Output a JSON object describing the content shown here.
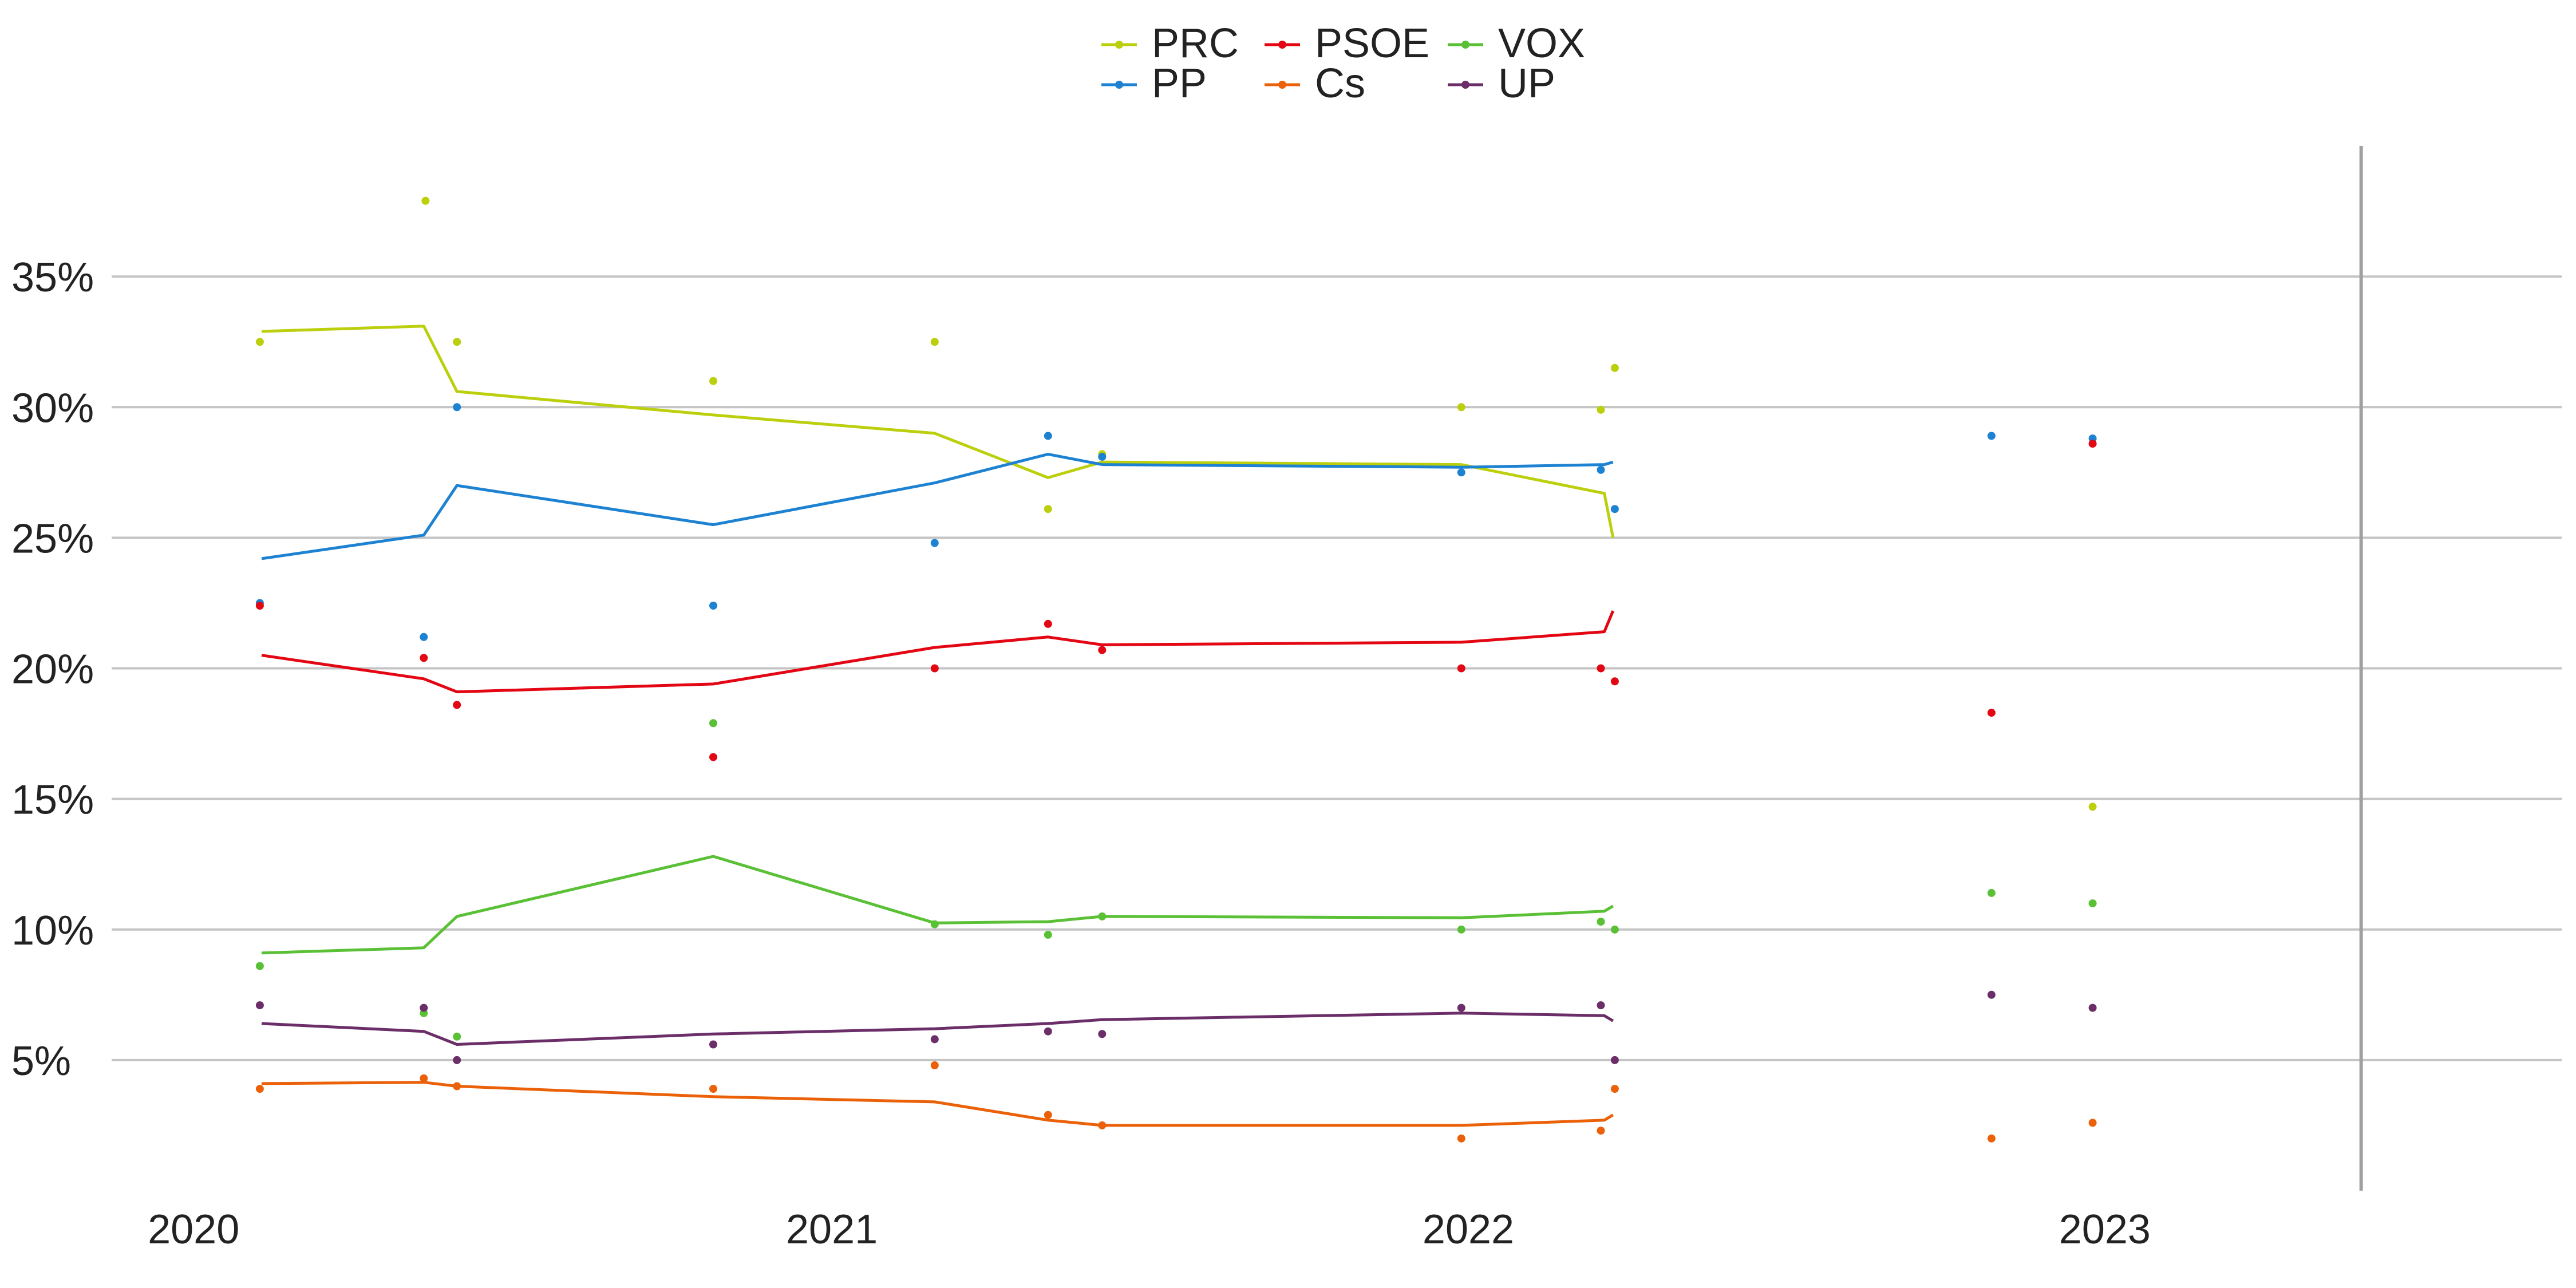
{
  "chart_data": {
    "type": "line",
    "title": "",
    "xlabel": "",
    "ylabel": "",
    "x_ticks": [
      "2020",
      "2021",
      "2022",
      "2023"
    ],
    "y_ticks": [
      "5%",
      "10%",
      "15%",
      "20%",
      "25%",
      "30%",
      "35%"
    ],
    "x_range": [
      "2019-11-15",
      "2023-09-20"
    ],
    "y_range": [
      0,
      40
    ],
    "grid": "horizontal",
    "legend_position": "top",
    "vertical_marker": "2023-05-28",
    "series": [
      {
        "name": "PRC",
        "color": "#bccf0d",
        "line": [
          [
            "2020-02-09",
            32.9
          ],
          [
            "2020-05-12",
            33.1
          ],
          [
            "2020-05-31",
            30.6
          ],
          [
            "2020-10-25",
            29.7
          ],
          [
            "2021-03-01",
            29.0
          ],
          [
            "2021-05-05",
            27.3
          ],
          [
            "2021-06-05",
            27.9
          ],
          [
            "2021-12-28",
            27.8
          ],
          [
            "2022-03-20",
            26.7
          ],
          [
            "2022-03-25",
            25.0
          ]
        ],
        "points": [
          [
            "2020-02-08",
            32.5
          ],
          [
            "2020-05-13",
            37.9
          ],
          [
            "2020-05-31",
            32.5
          ],
          [
            "2020-10-25",
            31.0
          ],
          [
            "2021-03-01",
            32.5
          ],
          [
            "2021-05-05",
            26.1
          ],
          [
            "2021-06-05",
            28.2
          ],
          [
            "2021-12-28",
            30.0
          ],
          [
            "2022-03-18",
            29.9
          ],
          [
            "2022-03-26",
            31.5
          ],
          [
            "2022-12-25",
            14.7
          ]
        ]
      },
      {
        "name": "PP",
        "color": "#1e82d2",
        "line": [
          [
            "2020-02-09",
            24.2
          ],
          [
            "2020-05-12",
            25.1
          ],
          [
            "2020-05-31",
            27.0
          ],
          [
            "2020-10-25",
            25.5
          ],
          [
            "2021-03-01",
            27.1
          ],
          [
            "2021-05-05",
            28.2
          ],
          [
            "2021-06-05",
            27.8
          ],
          [
            "2021-12-28",
            27.7
          ],
          [
            "2022-03-20",
            27.8
          ],
          [
            "2022-03-25",
            27.9
          ]
        ],
        "points": [
          [
            "2020-02-08",
            22.5
          ],
          [
            "2020-05-12",
            21.2
          ],
          [
            "2020-05-31",
            30.0
          ],
          [
            "2020-10-25",
            22.4
          ],
          [
            "2021-03-01",
            24.8
          ],
          [
            "2021-05-05",
            28.9
          ],
          [
            "2021-06-05",
            28.1
          ],
          [
            "2021-12-28",
            27.5
          ],
          [
            "2022-03-18",
            27.6
          ],
          [
            "2022-03-26",
            26.1
          ],
          [
            "2022-10-28",
            28.9
          ],
          [
            "2022-12-25",
            28.8
          ]
        ]
      },
      {
        "name": "PSOE",
        "color": "#e30613",
        "line": [
          [
            "2020-02-09",
            20.5
          ],
          [
            "2020-05-12",
            19.6
          ],
          [
            "2020-05-31",
            19.1
          ],
          [
            "2020-10-25",
            19.4
          ],
          [
            "2021-03-01",
            20.8
          ],
          [
            "2021-05-05",
            21.2
          ],
          [
            "2021-06-05",
            20.9
          ],
          [
            "2021-12-28",
            21.0
          ],
          [
            "2022-03-20",
            21.4
          ],
          [
            "2022-03-25",
            22.2
          ]
        ],
        "points": [
          [
            "2020-02-08",
            22.4
          ],
          [
            "2020-05-12",
            20.4
          ],
          [
            "2020-05-31",
            18.6
          ],
          [
            "2020-10-25",
            16.6
          ],
          [
            "2021-03-01",
            20.0
          ],
          [
            "2021-05-05",
            21.7
          ],
          [
            "2021-06-05",
            20.7
          ],
          [
            "2021-12-28",
            20.0
          ],
          [
            "2022-03-18",
            20.0
          ],
          [
            "2022-03-26",
            19.5
          ],
          [
            "2022-10-28",
            18.3
          ],
          [
            "2022-12-25",
            28.6
          ]
        ]
      },
      {
        "name": "Cs",
        "color": "#eb6109",
        "line": [
          [
            "2020-02-09",
            4.1
          ],
          [
            "2020-05-12",
            4.15
          ],
          [
            "2020-05-31",
            4.0
          ],
          [
            "2020-10-25",
            3.6
          ],
          [
            "2021-03-01",
            3.4
          ],
          [
            "2021-05-05",
            2.7
          ],
          [
            "2021-06-05",
            2.5
          ],
          [
            "2021-12-28",
            2.5
          ],
          [
            "2022-03-20",
            2.7
          ],
          [
            "2022-03-25",
            2.9
          ]
        ],
        "points": [
          [
            "2020-02-08",
            3.9
          ],
          [
            "2020-05-12",
            4.3
          ],
          [
            "2020-05-31",
            4.0
          ],
          [
            "2020-10-25",
            3.9
          ],
          [
            "2021-03-01",
            4.8
          ],
          [
            "2021-05-05",
            2.9
          ],
          [
            "2021-06-05",
            2.5
          ],
          [
            "2021-12-28",
            2.0
          ],
          [
            "2022-03-18",
            2.3
          ],
          [
            "2022-03-26",
            3.9
          ],
          [
            "2022-10-28",
            2.0
          ],
          [
            "2022-12-25",
            2.6
          ]
        ]
      },
      {
        "name": "VOX",
        "color": "#5ac035",
        "line": [
          [
            "2020-02-09",
            9.1
          ],
          [
            "2020-05-12",
            9.3
          ],
          [
            "2020-05-31",
            10.5
          ],
          [
            "2020-10-25",
            12.8
          ],
          [
            "2021-03-01",
            10.25
          ],
          [
            "2021-05-05",
            10.3
          ],
          [
            "2021-06-05",
            10.5
          ],
          [
            "2021-12-28",
            10.45
          ],
          [
            "2022-03-20",
            10.7
          ],
          [
            "2022-03-25",
            10.9
          ]
        ],
        "points": [
          [
            "2020-02-08",
            8.6
          ],
          [
            "2020-05-12",
            6.8
          ],
          [
            "2020-05-31",
            5.9
          ],
          [
            "2020-10-25",
            17.9
          ],
          [
            "2021-03-01",
            10.2
          ],
          [
            "2021-05-05",
            9.8
          ],
          [
            "2021-06-05",
            10.5
          ],
          [
            "2021-12-28",
            10.0
          ],
          [
            "2022-03-18",
            10.3
          ],
          [
            "2022-03-26",
            10.0
          ],
          [
            "2022-10-28",
            11.4
          ],
          [
            "2022-12-25",
            11.0
          ]
        ]
      },
      {
        "name": "UP",
        "color": "#6b2e68",
        "line": [
          [
            "2020-02-09",
            6.4
          ],
          [
            "2020-05-12",
            6.1
          ],
          [
            "2020-05-31",
            5.6
          ],
          [
            "2020-10-25",
            6.0
          ],
          [
            "2021-03-01",
            6.2
          ],
          [
            "2021-05-05",
            6.4
          ],
          [
            "2021-06-05",
            6.55
          ],
          [
            "2021-12-28",
            6.8
          ],
          [
            "2022-03-20",
            6.7
          ],
          [
            "2022-03-25",
            6.5
          ]
        ],
        "points": [
          [
            "2020-02-08",
            7.1
          ],
          [
            "2020-05-12",
            7.0
          ],
          [
            "2020-05-31",
            5.0
          ],
          [
            "2020-10-25",
            5.6
          ],
          [
            "2021-03-01",
            5.8
          ],
          [
            "2021-05-05",
            6.1
          ],
          [
            "2021-06-05",
            6.0
          ],
          [
            "2021-12-28",
            7.0
          ],
          [
            "2022-03-18",
            7.1
          ],
          [
            "2022-03-26",
            5.0
          ],
          [
            "2022-10-28",
            7.5
          ],
          [
            "2022-12-25",
            7.0
          ]
        ]
      }
    ]
  }
}
